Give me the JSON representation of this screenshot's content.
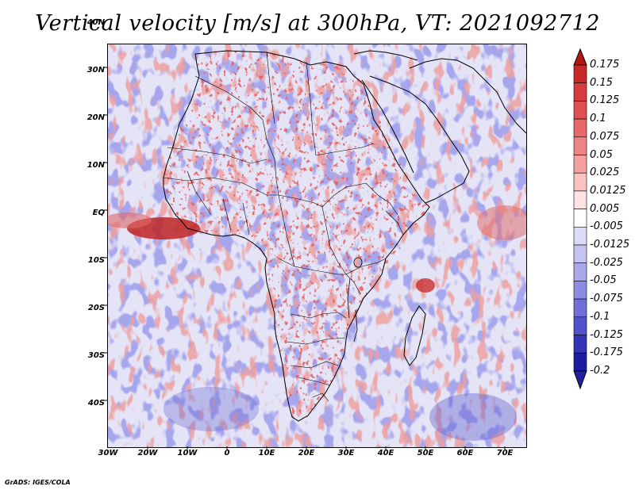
{
  "title": "Vertical velocity [m/s] at 300hPa, VT: 2021092712",
  "footer": "GrADS: IGES/COLA",
  "lat_labels": [
    "40N",
    "30N",
    "20N",
    "10N",
    "EQ",
    "10S",
    "20S",
    "30S",
    "40S"
  ],
  "lon_labels": [
    "30W",
    "20W",
    "10W",
    "0",
    "10E",
    "20E",
    "30E",
    "40E",
    "50E",
    "60E",
    "70E"
  ],
  "colorbar": {
    "labels": [
      "0.175",
      "0.15",
      "0.125",
      "0.1",
      "0.075",
      "0.05",
      "0.025",
      "0.0125",
      "0.005",
      "-0.005",
      "-0.0125",
      "-0.025",
      "-0.05",
      "-0.075",
      "-0.1",
      "-0.125",
      "-0.175",
      "-0.2"
    ],
    "colors": [
      "#b01818",
      "#c82828",
      "#d63c3c",
      "#e05050",
      "#e86868",
      "#ef8282",
      "#f4a0a0",
      "#f8c2c2",
      "#fce2e2",
      "#ffffff",
      "#dcdcf8",
      "#c4c4f2",
      "#a8a8ea",
      "#8c8ce2",
      "#7070d8",
      "#5252cc",
      "#3434b8",
      "#1c1ca0",
      "#2020a0"
    ]
  },
  "colors": {
    "positive": "#d84040",
    "negative": "#6a6ad8",
    "background": "#e6e6f8"
  }
}
